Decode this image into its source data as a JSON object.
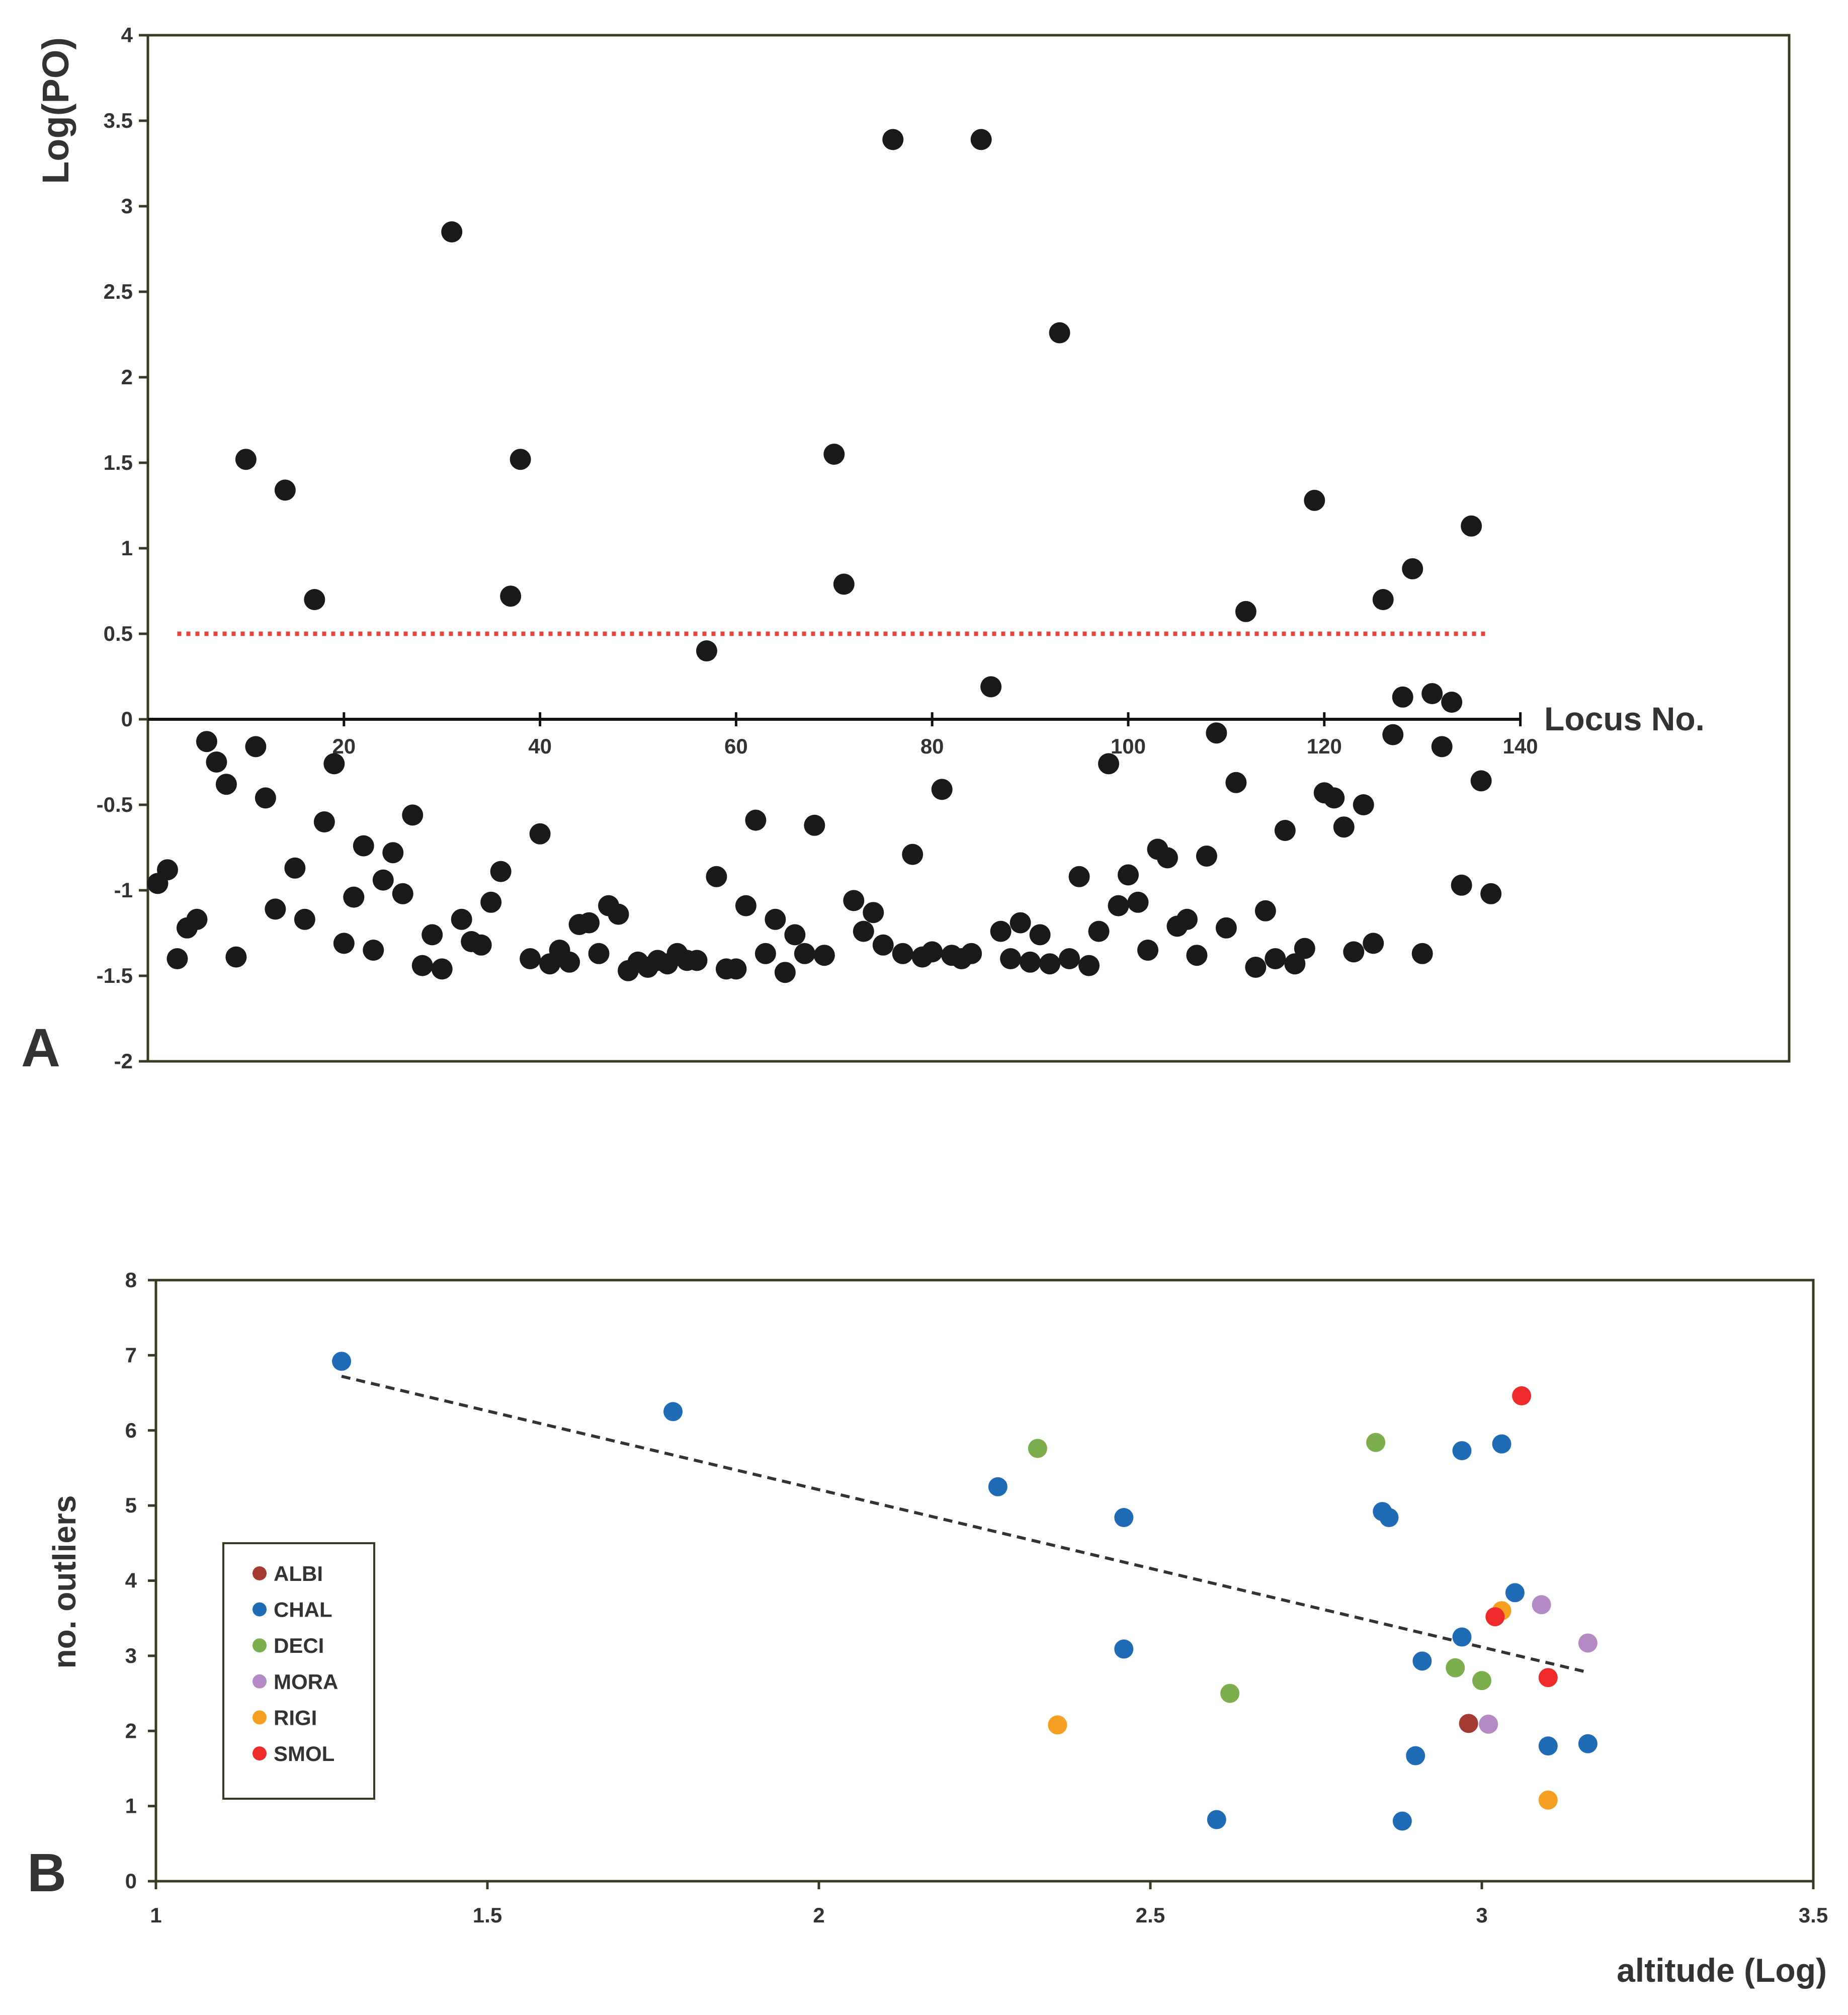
{
  "chart_data": [
    {
      "panel_label": "A",
      "type": "scatter",
      "ylabel": "Log(PO)",
      "xlabel": "Locus No.",
      "ylim": [
        -2,
        4
      ],
      "xlim": [
        0,
        140
      ],
      "yticks": [
        "-2",
        "-1.5",
        "-1",
        "-0.5",
        "0",
        "0.5",
        "1",
        "1.5",
        "2",
        "2.5",
        "3",
        "3.5",
        "4"
      ],
      "xticks": [
        "20",
        "40",
        "60",
        "80",
        "100",
        "120",
        "140"
      ],
      "threshold": {
        "y": 0.5,
        "x_range": [
          3,
          136.5
        ],
        "color": "#e8443a",
        "style": "dotted"
      },
      "marker_color": "#1a1a1a",
      "points": [
        [
          1,
          -0.96
        ],
        [
          2,
          -0.88
        ],
        [
          3,
          -1.4
        ],
        [
          4,
          -1.22
        ],
        [
          5,
          -1.17
        ],
        [
          6,
          -0.13
        ],
        [
          7,
          -0.25
        ],
        [
          8,
          -0.38
        ],
        [
          9,
          -1.39
        ],
        [
          10,
          1.52
        ],
        [
          11,
          -0.16
        ],
        [
          12,
          -0.46
        ],
        [
          13,
          -1.11
        ],
        [
          14,
          1.34
        ],
        [
          15,
          -0.87
        ],
        [
          16,
          -1.17
        ],
        [
          17,
          0.7
        ],
        [
          18,
          -0.6
        ],
        [
          19,
          -0.26
        ],
        [
          20,
          -1.31
        ],
        [
          21,
          -1.04
        ],
        [
          22,
          -0.74
        ],
        [
          23,
          -1.35
        ],
        [
          24,
          -0.94
        ],
        [
          25,
          -0.78
        ],
        [
          26,
          -1.02
        ],
        [
          27,
          -0.56
        ],
        [
          28,
          -1.44
        ],
        [
          29,
          -1.26
        ],
        [
          30,
          -1.46
        ],
        [
          31,
          2.85
        ],
        [
          32,
          -1.17
        ],
        [
          33,
          -1.3
        ],
        [
          34,
          -1.32
        ],
        [
          35,
          -1.07
        ],
        [
          36,
          -0.89
        ],
        [
          37,
          0.72
        ],
        [
          38,
          1.52
        ],
        [
          39,
          -1.4
        ],
        [
          40,
          -0.67
        ],
        [
          41,
          -1.43
        ],
        [
          42,
          -1.35
        ],
        [
          43,
          -1.42
        ],
        [
          44,
          -1.2
        ],
        [
          45,
          -1.19
        ],
        [
          46,
          -1.37
        ],
        [
          47,
          -1.09
        ],
        [
          48,
          -1.14
        ],
        [
          49,
          -1.47
        ],
        [
          50,
          -1.42
        ],
        [
          51,
          -1.45
        ],
        [
          52,
          -1.41
        ],
        [
          53,
          -1.43
        ],
        [
          54,
          -1.37
        ],
        [
          55,
          -1.41
        ],
        [
          56,
          -1.41
        ],
        [
          57,
          0.4
        ],
        [
          58,
          -0.92
        ],
        [
          59,
          -1.46
        ],
        [
          60,
          -1.46
        ],
        [
          61,
          -1.09
        ],
        [
          62,
          -0.59
        ],
        [
          63,
          -1.37
        ],
        [
          64,
          -1.17
        ],
        [
          65,
          -1.48
        ],
        [
          66,
          -1.26
        ],
        [
          67,
          -1.37
        ],
        [
          68,
          -0.62
        ],
        [
          69,
          -1.38
        ],
        [
          70,
          1.55
        ],
        [
          71,
          0.79
        ],
        [
          72,
          -1.06
        ],
        [
          73,
          -1.24
        ],
        [
          74,
          -1.13
        ],
        [
          75,
          -1.32
        ],
        [
          76,
          3.39
        ],
        [
          77,
          -1.37
        ],
        [
          78,
          -0.79
        ],
        [
          79,
          -1.39
        ],
        [
          80,
          -1.36
        ],
        [
          81,
          -0.41
        ],
        [
          82,
          -1.38
        ],
        [
          83,
          -1.4
        ],
        [
          84,
          -1.37
        ],
        [
          85,
          3.39
        ],
        [
          86,
          0.19
        ],
        [
          87,
          -1.24
        ],
        [
          88,
          -1.4
        ],
        [
          89,
          -1.19
        ],
        [
          90,
          -1.42
        ],
        [
          91,
          -1.26
        ],
        [
          92,
          -1.43
        ],
        [
          93,
          2.26
        ],
        [
          94,
          -1.4
        ],
        [
          95,
          -0.92
        ],
        [
          96,
          -1.44
        ],
        [
          97,
          -1.24
        ],
        [
          98,
          -0.26
        ],
        [
          99,
          -1.09
        ],
        [
          100,
          -0.91
        ],
        [
          101,
          -1.07
        ],
        [
          102,
          -1.35
        ],
        [
          103,
          -0.76
        ],
        [
          104,
          -0.81
        ],
        [
          105,
          -1.21
        ],
        [
          106,
          -1.17
        ],
        [
          107,
          -1.38
        ],
        [
          108,
          -0.8
        ],
        [
          109,
          -0.08
        ],
        [
          110,
          -1.22
        ],
        [
          111,
          -0.37
        ],
        [
          112,
          0.63
        ],
        [
          113,
          -1.45
        ],
        [
          114,
          -1.12
        ],
        [
          115,
          -1.4
        ],
        [
          116,
          -0.65
        ],
        [
          117,
          -1.43
        ],
        [
          118,
          -1.34
        ],
        [
          119,
          1.28
        ],
        [
          120,
          -0.43
        ],
        [
          121,
          -0.46
        ],
        [
          122,
          -0.63
        ],
        [
          123,
          -1.36
        ],
        [
          124,
          -0.5
        ],
        [
          125,
          -1.31
        ],
        [
          126,
          0.7
        ],
        [
          127,
          -0.09
        ],
        [
          128,
          0.13
        ],
        [
          129,
          0.88
        ],
        [
          130,
          -1.37
        ],
        [
          131,
          0.15
        ],
        [
          132,
          -0.16
        ],
        [
          133,
          0.1
        ],
        [
          134,
          -0.97
        ],
        [
          135,
          1.13
        ],
        [
          136,
          -0.36
        ],
        [
          137,
          -1.02
        ]
      ]
    },
    {
      "panel_label": "B",
      "type": "scatter",
      "ylabel": "no. outliers",
      "xlabel": "altitude (Log)",
      "xlim": [
        1,
        3.5
      ],
      "ylim": [
        0,
        8
      ],
      "xticks": [
        "1",
        "1.5",
        "2",
        "2.5",
        "3",
        "3.5"
      ],
      "yticks": [
        "0",
        "1",
        "2",
        "3",
        "4",
        "5",
        "6",
        "7",
        "8"
      ],
      "trendline": {
        "x": [
          1.28,
          3.16
        ],
        "y": [
          6.72,
          2.78
        ],
        "style": "dashed",
        "color": "#333333"
      },
      "legend": [
        {
          "name": "ALBI",
          "color": "#a33b32"
        },
        {
          "name": "CHAL",
          "color": "#1f6bb5"
        },
        {
          "name": "DECI",
          "color": "#7dae4d"
        },
        {
          "name": "MORA",
          "color": "#b48ac4"
        },
        {
          "name": "RIGI",
          "color": "#f5a020"
        },
        {
          "name": "SMOL",
          "color": "#ee2a2a"
        }
      ],
      "series": [
        {
          "name": "ALBI",
          "points": [
            [
              2.98,
              2.1
            ]
          ]
        },
        {
          "name": "CHAL",
          "points": [
            [
              1.28,
              6.92
            ],
            [
              1.78,
              6.25
            ],
            [
              2.27,
              5.25
            ],
            [
              2.46,
              4.84
            ],
            [
              2.46,
              3.09
            ],
            [
              2.6,
              0.82
            ],
            [
              2.85,
              4.92
            ],
            [
              2.86,
              4.84
            ],
            [
              2.88,
              0.8
            ],
            [
              2.9,
              1.67
            ],
            [
              2.91,
              2.93
            ],
            [
              2.97,
              5.73
            ],
            [
              2.97,
              3.25
            ],
            [
              3.03,
              5.82
            ],
            [
              3.05,
              3.84
            ],
            [
              3.1,
              1.8
            ],
            [
              3.16,
              1.83
            ]
          ]
        },
        {
          "name": "DECI",
          "points": [
            [
              2.33,
              5.76
            ],
            [
              2.62,
              2.5
            ],
            [
              2.84,
              5.84
            ],
            [
              2.96,
              2.84
            ],
            [
              3.0,
              2.67
            ]
          ]
        },
        {
          "name": "MORA",
          "points": [
            [
              3.01,
              2.09
            ],
            [
              3.09,
              3.68
            ],
            [
              3.16,
              3.17
            ]
          ]
        },
        {
          "name": "RIGI",
          "points": [
            [
              2.36,
              2.08
            ],
            [
              3.03,
              3.6
            ],
            [
              3.1,
              1.08
            ]
          ]
        },
        {
          "name": "SMOL",
          "points": [
            [
              3.06,
              6.46
            ],
            [
              3.02,
              3.52
            ],
            [
              3.1,
              2.71
            ]
          ]
        }
      ]
    }
  ]
}
